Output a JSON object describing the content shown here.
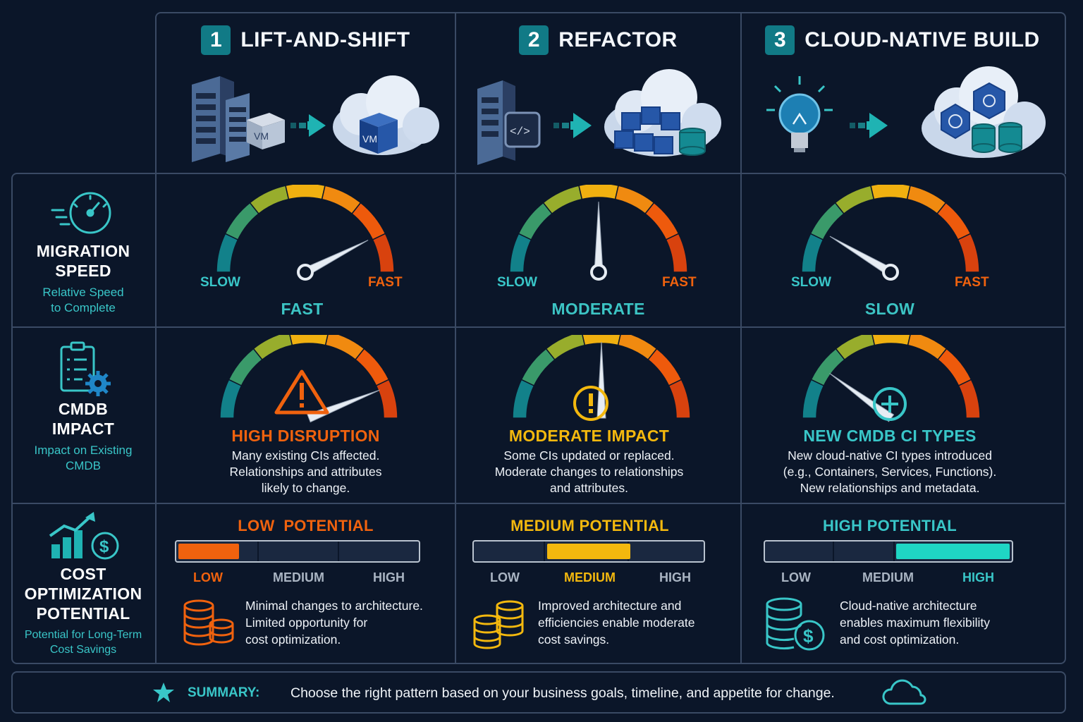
{
  "colors": {
    "teal": "#39c6c8",
    "orange": "#f0620e",
    "yellow": "#f3b80e",
    "cyan_fill": "#1fd6c4",
    "border": "#3a4a64",
    "background": "#0b1629"
  },
  "columns": [
    {
      "number": "1",
      "title": "LIFT-AND-SHIFT",
      "illustration": [
        "server-rack-icon",
        "vm-box-icon",
        "arrow-right-icon",
        "cloud-vm-icon"
      ]
    },
    {
      "number": "2",
      "title": "REFACTOR",
      "illustration": [
        "server-rack-icon",
        "code-box-icon",
        "arrow-right-icon",
        "cloud-containers-icon"
      ]
    },
    {
      "number": "3",
      "title": "CLOUD-NATIVE BUILD",
      "illustration": [
        "lightbulb-icon",
        "arrow-right-icon",
        "cloud-kubernetes-icon"
      ]
    }
  ],
  "rows": {
    "speed": {
      "icon": "speedometer-icon",
      "title_line1": "MIGRATION",
      "title_line2": "SPEED",
      "sub_line1": "Relative Speed",
      "sub_line2": "to Complete"
    },
    "cmdb": {
      "icon": "clipboard-gear-icon",
      "title_line1": "CMDB",
      "title_line2": "IMPACT",
      "sub_line1": "Impact on Existing",
      "sub_line2": "CMDB"
    },
    "cost": {
      "icon": "growth-chart-dollar-icon",
      "title_line1": "COST",
      "title_line2": "OPTIMIZATION",
      "title_line3": "POTENTIAL",
      "sub_line1": "Potential for Long-Term",
      "sub_line2": "Cost Savings"
    }
  },
  "speed_gauges": [
    {
      "slow_label": "SLOW",
      "fast_label": "FAST",
      "value_label": "FAST",
      "level": 0.85
    },
    {
      "slow_label": "SLOW",
      "fast_label": "FAST",
      "value_label": "MODERATE",
      "level": 0.5
    },
    {
      "slow_label": "SLOW",
      "fast_label": "FAST",
      "value_label": "SLOW",
      "level": 0.17
    }
  ],
  "cmdb_impact": [
    {
      "icon": "warning-triangle-icon",
      "title": "HIGH DISRUPTION",
      "color": "#f0620e",
      "level": 0.88,
      "line1": "Many existing CIs affected.",
      "line2": "Relationships and attributes",
      "line3": "likely to change."
    },
    {
      "icon": "exclamation-circle-icon",
      "title": "MODERATE IMPACT",
      "color": "#f3b80e",
      "level": 0.5,
      "line1": "Some CIs updated or replaced.",
      "line2": "Moderate changes to relationships",
      "line3": "and attributes."
    },
    {
      "icon": "plus-circle-icon",
      "title": "NEW CMDB CI TYPES",
      "color": "#39c6c8",
      "level": 0.2,
      "line1": "New cloud-native CI types introduced",
      "line2": "(e.g., Containers, Services, Functions).",
      "line3": "New relationships and metadata."
    }
  ],
  "cost_potential": [
    {
      "title": "LOW  POTENTIAL",
      "color": "#f0620e",
      "fill_level": "low",
      "low": "LOW",
      "medium": "MEDIUM",
      "high": "HIGH",
      "icon": "coin-stack-icon",
      "line1": "Minimal changes to architecture.",
      "line2": "Limited opportunity for",
      "line3": "cost optimization."
    },
    {
      "title": "MEDIUM POTENTIAL",
      "color": "#f3b80e",
      "fill_level": "medium",
      "low": "LOW",
      "medium": "MEDIUM",
      "high": "HIGH",
      "icon": "coin-stack-icon",
      "line1": "Improved architecture and",
      "line2": "efficiencies enable moderate",
      "line3": "cost savings."
    },
    {
      "title": "HIGH POTENTIAL",
      "color": "#39c6c8",
      "fill_level": "high",
      "low": "LOW",
      "medium": "MEDIUM",
      "high": "HIGH",
      "icon": "coin-dollar-icon",
      "line1": "Cloud-native architecture",
      "line2": "enables maximum flexibility",
      "line3": "and cost optimization."
    }
  ],
  "summary": {
    "icon": "star-icon",
    "label": "SUMMARY:",
    "text": "Choose the right pattern based on your business goals, timeline, and appetite for change.",
    "end_icon": "cloud-outline-icon"
  }
}
